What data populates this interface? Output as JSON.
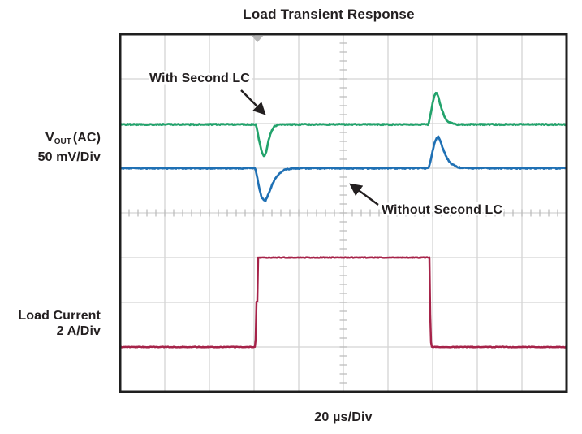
{
  "title": "Load Transient Response",
  "left_labels": {
    "vout": {
      "v": "V",
      "sub": "OUT",
      "rest": "(AC)",
      "scale": "50 mV/Div"
    },
    "load": {
      "line1": "Load Current",
      "line2": "2 A/Div"
    }
  },
  "x_axis_label": "20 µs/Div",
  "colors": {
    "with_second_lc": "#23a36c",
    "without_second_lc": "#1f70b4",
    "load_current": "#a62349",
    "grid": "#d4d4d4",
    "center_ticks": "#b9b9b9",
    "border": "#1f1f1f",
    "text": "#231f20",
    "trigger_marker": "#b5b5b5",
    "background": "#ffffff"
  },
  "chart_data": {
    "type": "line",
    "title": "Load Transient Response",
    "x_unit": "µs",
    "x_per_div": 20,
    "x_range": [
      0,
      200
    ],
    "divisions": {
      "x": 10,
      "y": 8
    },
    "grid": "on",
    "trigger_marker_t_us": 61.5,
    "annotations": [
      {
        "id": "with-second-lc",
        "text": "With Second LC",
        "points_to_series": "vout_with_second_lc"
      },
      {
        "id": "without-second-lc",
        "text": "Without Second LC",
        "points_to_series": "vout_without_second_lc"
      }
    ],
    "series": [
      {
        "name": "load_current",
        "label": "Load Current",
        "unit": "A",
        "per_div": 2,
        "zero_at_div_from_top": 7.0,
        "color": "#a62349",
        "points": [
          [
            0,
            0
          ],
          [
            60.7,
            0
          ],
          [
            60.85,
            2.0
          ],
          [
            61.5,
            2.05
          ],
          [
            61.65,
            4
          ],
          [
            138.8,
            4
          ],
          [
            138.95,
            0.5
          ],
          [
            139.3,
            0.2
          ],
          [
            139.45,
            0
          ],
          [
            200,
            0
          ]
        ]
      },
      {
        "name": "vout_without_second_lc",
        "label": "Without Second LC",
        "unit": "mV",
        "per_div": 50,
        "zero_at_div_from_top": 3.0,
        "color": "#1f70b4",
        "points": [
          [
            0,
            0
          ],
          [
            60.5,
            0
          ],
          [
            61.1,
            -6
          ],
          [
            62.1,
            -20
          ],
          [
            63.3,
            -32
          ],
          [
            64.3,
            -36
          ],
          [
            65.1,
            -36.5
          ],
          [
            66.1,
            -31
          ],
          [
            67.5,
            -22
          ],
          [
            69.2,
            -13
          ],
          [
            71.2,
            -6
          ],
          [
            73.5,
            -2
          ],
          [
            76,
            -0.5
          ],
          [
            78,
            0
          ],
          [
            138.2,
            0
          ],
          [
            138.7,
            4
          ],
          [
            139.6,
            15
          ],
          [
            140.8,
            28
          ],
          [
            141.9,
            34.5
          ],
          [
            142.6,
            35.5
          ],
          [
            143.5,
            30
          ],
          [
            144.9,
            20
          ],
          [
            146.4,
            11
          ],
          [
            148.3,
            5
          ],
          [
            150.8,
            1.5
          ],
          [
            153.5,
            0
          ],
          [
            200,
            0
          ]
        ]
      },
      {
        "name": "vout_with_second_lc",
        "label": "With Second LC",
        "unit": "mV",
        "per_div": 50,
        "zero_at_div_from_top": 2.02,
        "color": "#23a36c",
        "points": [
          [
            0,
            0
          ],
          [
            60.8,
            0
          ],
          [
            61.3,
            -5
          ],
          [
            62.2,
            -17
          ],
          [
            63.2,
            -29
          ],
          [
            64.2,
            -34.5
          ],
          [
            64.8,
            -35.5
          ],
          [
            65.6,
            -29
          ],
          [
            66.6,
            -17
          ],
          [
            67.7,
            -8
          ],
          [
            69,
            -2.5
          ],
          [
            70.5,
            -0.5
          ],
          [
            72,
            0
          ],
          [
            138,
            0
          ],
          [
            138.4,
            3
          ],
          [
            139.2,
            13
          ],
          [
            140.2,
            27
          ],
          [
            141.1,
            34
          ],
          [
            141.7,
            35.5
          ],
          [
            142.5,
            31
          ],
          [
            143.6,
            21
          ],
          [
            144.9,
            11
          ],
          [
            146.3,
            4.5
          ],
          [
            148.3,
            1.5
          ],
          [
            151,
            0
          ],
          [
            200,
            0
          ]
        ]
      }
    ]
  }
}
